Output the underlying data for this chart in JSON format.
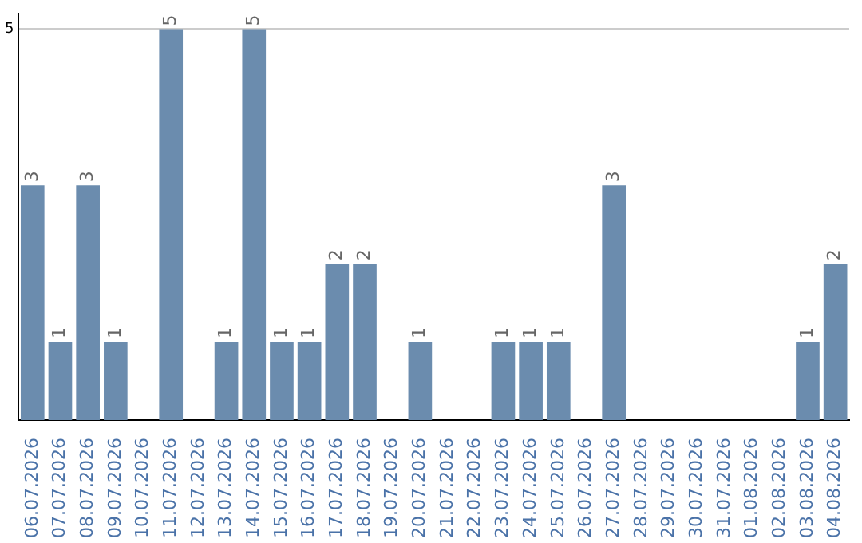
{
  "chart_data": {
    "type": "bar",
    "categories": [
      "06.07.2026",
      "07.07.2026",
      "08.07.2026",
      "09.07.2026",
      "10.07.2026",
      "11.07.2026",
      "12.07.2026",
      "13.07.2026",
      "14.07.2026",
      "15.07.2026",
      "16.07.2026",
      "17.07.2026",
      "18.07.2026",
      "19.07.2026",
      "20.07.2026",
      "21.07.2026",
      "22.07.2026",
      "23.07.2026",
      "24.07.2026",
      "25.07.2026",
      "26.07.2026",
      "27.07.2026",
      "28.07.2026",
      "29.07.2026",
      "30.07.2026",
      "31.07.2026",
      "01.08.2026",
      "02.08.2026",
      "03.08.2026",
      "04.08.2026"
    ],
    "values": [
      3,
      1,
      3,
      1,
      0,
      5,
      0,
      1,
      5,
      1,
      1,
      2,
      2,
      0,
      1,
      0,
      0,
      1,
      1,
      1,
      0,
      3,
      0,
      0,
      0,
      0,
      0,
      0,
      1,
      2
    ],
    "value_labels": [
      "3",
      "1",
      "3",
      "1",
      null,
      "5",
      null,
      "1",
      "5",
      "1",
      "1",
      "2",
      "2",
      null,
      "1",
      null,
      null,
      "1",
      "1",
      "1",
      null,
      "3",
      null,
      null,
      null,
      null,
      null,
      null,
      "1",
      "2"
    ],
    "color": "#6b8cae",
    "ylim": [
      0,
      5.2
    ],
    "yticks": [
      5
    ],
    "grid": "y",
    "legend": false
  }
}
